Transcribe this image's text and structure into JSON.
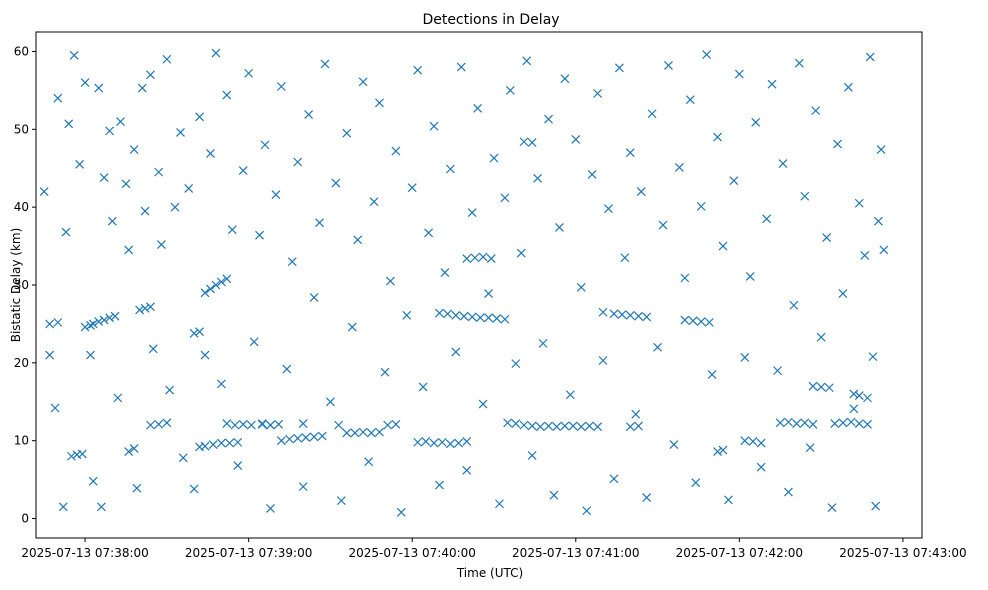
{
  "chart_data": {
    "type": "scatter",
    "title": "Detections in Delay",
    "xlabel": "Time (UTC)",
    "ylabel": "Bistatic Delay (km)",
    "x_ticks": [
      "2025-07-13 07:38:00",
      "2025-07-13 07:39:00",
      "2025-07-13 07:40:00",
      "2025-07-13 07:41:00",
      "2025-07-13 07:42:00",
      "2025-07-13 07:43:00"
    ],
    "y_ticks": [
      0,
      10,
      20,
      30,
      40,
      50,
      60
    ],
    "xlim": [
      "2025-07-13 07:37:42",
      "2025-07-13 07:43:07"
    ],
    "ylim": [
      -2.5,
      62.5
    ],
    "marker": "x",
    "grid": false,
    "color": "#1f77b4",
    "series": [
      {
        "points": [
          [
            "07:37:47",
            25.0
          ],
          [
            "07:37:50",
            25.2
          ],
          [
            "07:37:55",
            8.0
          ],
          [
            "07:37:57",
            8.2
          ],
          [
            "07:37:59",
            8.3
          ],
          [
            "07:38:00",
            24.6
          ],
          [
            "07:38:02",
            24.8
          ],
          [
            "07:38:03",
            25.0
          ],
          [
            "07:38:05",
            25.3
          ],
          [
            "07:38:07",
            25.5
          ],
          [
            "07:38:09",
            25.8
          ],
          [
            "07:38:11",
            26.0
          ],
          [
            "07:38:16",
            8.6
          ],
          [
            "07:38:18",
            9.0
          ],
          [
            "07:38:20",
            26.8
          ],
          [
            "07:38:22",
            27.0
          ],
          [
            "07:38:24",
            27.2
          ],
          [
            "07:38:24",
            12.0
          ],
          [
            "07:38:27",
            12.1
          ],
          [
            "07:38:30",
            12.3
          ],
          [
            "07:38:40",
            23.8
          ],
          [
            "07:38:42",
            24.0
          ],
          [
            "07:38:44",
            29.0
          ],
          [
            "07:38:46",
            29.5
          ],
          [
            "07:38:48",
            30.0
          ],
          [
            "07:38:50",
            30.4
          ],
          [
            "07:38:52",
            30.8
          ],
          [
            "07:38:42",
            9.2
          ],
          [
            "07:38:44",
            9.3
          ],
          [
            "07:38:47",
            9.5
          ],
          [
            "07:38:50",
            9.7
          ],
          [
            "07:38:53",
            9.7
          ],
          [
            "07:38:56",
            9.8
          ],
          [
            "07:38:52",
            12.2
          ],
          [
            "07:38:55",
            12.0
          ],
          [
            "07:38:58",
            12.1
          ],
          [
            "07:39:01",
            12.0
          ],
          [
            "07:39:05",
            12.1
          ],
          [
            "07:39:08",
            12.0
          ],
          [
            "07:39:12",
            10.0
          ],
          [
            "07:39:15",
            10.2
          ],
          [
            "07:39:18",
            10.3
          ],
          [
            "07:39:21",
            10.4
          ],
          [
            "07:39:24",
            10.5
          ],
          [
            "07:39:27",
            10.6
          ],
          [
            "07:39:05",
            12.2
          ],
          [
            "07:39:08",
            12.0
          ],
          [
            "07:39:11",
            12.1
          ],
          [
            "07:39:20",
            12.2
          ],
          [
            "07:39:33",
            12.0
          ],
          [
            "07:39:36",
            11.0
          ],
          [
            "07:39:39",
            11.0
          ],
          [
            "07:39:42",
            11.1
          ],
          [
            "07:39:45",
            11.0
          ],
          [
            "07:39:48",
            11.1
          ],
          [
            "07:39:51",
            12.0
          ],
          [
            "07:39:54",
            12.1
          ],
          [
            "07:40:02",
            9.8
          ],
          [
            "07:40:05",
            9.9
          ],
          [
            "07:40:08",
            9.7
          ],
          [
            "07:40:11",
            9.8
          ],
          [
            "07:40:14",
            9.6
          ],
          [
            "07:40:17",
            9.7
          ],
          [
            "07:40:20",
            9.9
          ],
          [
            "07:40:10",
            26.4
          ],
          [
            "07:40:13",
            26.3
          ],
          [
            "07:40:16",
            26.1
          ],
          [
            "07:40:19",
            26.0
          ],
          [
            "07:40:22",
            25.9
          ],
          [
            "07:40:25",
            25.8
          ],
          [
            "07:40:28",
            25.8
          ],
          [
            "07:40:31",
            25.7
          ],
          [
            "07:40:34",
            25.6
          ],
          [
            "07:40:20",
            33.4
          ],
          [
            "07:40:23",
            33.5
          ],
          [
            "07:40:26",
            33.6
          ],
          [
            "07:40:29",
            33.4
          ],
          [
            "07:40:35",
            12.3
          ],
          [
            "07:40:38",
            12.2
          ],
          [
            "07:40:41",
            12.0
          ],
          [
            "07:40:44",
            11.9
          ],
          [
            "07:40:47",
            11.8
          ],
          [
            "07:40:50",
            11.9
          ],
          [
            "07:40:53",
            11.8
          ],
          [
            "07:40:56",
            11.9
          ],
          [
            "07:40:59",
            11.9
          ],
          [
            "07:41:02",
            11.8
          ],
          [
            "07:41:05",
            11.9
          ],
          [
            "07:41:08",
            11.8
          ],
          [
            "07:40:41",
            48.4
          ],
          [
            "07:40:44",
            48.3
          ],
          [
            "07:41:10",
            26.5
          ],
          [
            "07:41:14",
            26.3
          ],
          [
            "07:41:17",
            26.2
          ],
          [
            "07:41:20",
            26.1
          ],
          [
            "07:41:23",
            26.0
          ],
          [
            "07:41:26",
            25.9
          ],
          [
            "07:41:20",
            11.8
          ],
          [
            "07:41:23",
            11.9
          ],
          [
            "07:41:40",
            25.5
          ],
          [
            "07:41:43",
            25.4
          ],
          [
            "07:41:46",
            25.3
          ],
          [
            "07:41:49",
            25.2
          ],
          [
            "07:41:52",
            8.6
          ],
          [
            "07:41:54",
            8.8
          ],
          [
            "07:42:02",
            10.0
          ],
          [
            "07:42:05",
            9.9
          ],
          [
            "07:42:08",
            9.7
          ],
          [
            "07:42:15",
            12.3
          ],
          [
            "07:42:18",
            12.4
          ],
          [
            "07:42:21",
            12.2
          ],
          [
            "07:42:24",
            12.3
          ],
          [
            "07:42:27",
            12.1
          ],
          [
            "07:42:35",
            12.2
          ],
          [
            "07:42:38",
            12.3
          ],
          [
            "07:42:41",
            12.4
          ],
          [
            "07:42:44",
            12.2
          ],
          [
            "07:42:47",
            12.1
          ],
          [
            "07:42:27",
            17.0
          ],
          [
            "07:42:30",
            16.9
          ],
          [
            "07:42:33",
            16.8
          ],
          [
            "07:42:42",
            16.0
          ],
          [
            "07:42:44",
            15.8
          ],
          [
            "07:42:47",
            15.5
          ],
          [
            "07:37:45",
            42.0
          ],
          [
            "07:37:47",
            21.0
          ],
          [
            "07:37:49",
            14.2
          ],
          [
            "07:37:50",
            54.0
          ],
          [
            "07:37:52",
            1.5
          ],
          [
            "07:37:53",
            36.8
          ],
          [
            "07:37:54",
            50.7
          ],
          [
            "07:37:56",
            59.5
          ],
          [
            "07:37:58",
            45.5
          ],
          [
            "07:38:00",
            56.0
          ],
          [
            "07:38:02",
            21.0
          ],
          [
            "07:38:03",
            4.8
          ],
          [
            "07:38:05",
            55.3
          ],
          [
            "07:38:06",
            1.5
          ],
          [
            "07:38:07",
            43.8
          ],
          [
            "07:38:09",
            49.8
          ],
          [
            "07:38:10",
            38.2
          ],
          [
            "07:38:12",
            15.5
          ],
          [
            "07:38:13",
            51.0
          ],
          [
            "07:38:15",
            43.0
          ],
          [
            "07:38:16",
            34.5
          ],
          [
            "07:38:18",
            47.4
          ],
          [
            "07:38:19",
            3.9
          ],
          [
            "07:38:21",
            55.3
          ],
          [
            "07:38:22",
            39.5
          ],
          [
            "07:38:24",
            57.0
          ],
          [
            "07:38:25",
            21.8
          ],
          [
            "07:38:27",
            44.5
          ],
          [
            "07:38:28",
            35.2
          ],
          [
            "07:38:30",
            59.0
          ],
          [
            "07:38:31",
            16.5
          ],
          [
            "07:38:33",
            40.0
          ],
          [
            "07:38:35",
            49.6
          ],
          [
            "07:38:36",
            7.8
          ],
          [
            "07:38:38",
            42.4
          ],
          [
            "07:38:40",
            3.8
          ],
          [
            "07:38:42",
            51.6
          ],
          [
            "07:38:44",
            21.0
          ],
          [
            "07:38:46",
            46.9
          ],
          [
            "07:38:48",
            59.8
          ],
          [
            "07:38:50",
            17.3
          ],
          [
            "07:38:52",
            54.4
          ],
          [
            "07:38:54",
            37.1
          ],
          [
            "07:38:56",
            6.8
          ],
          [
            "07:38:58",
            44.7
          ],
          [
            "07:39:00",
            57.2
          ],
          [
            "07:39:02",
            22.7
          ],
          [
            "07:39:04",
            36.4
          ],
          [
            "07:39:06",
            48.0
          ],
          [
            "07:39:08",
            1.3
          ],
          [
            "07:39:10",
            41.6
          ],
          [
            "07:39:12",
            55.5
          ],
          [
            "07:39:14",
            19.2
          ],
          [
            "07:39:16",
            33.0
          ],
          [
            "07:39:18",
            45.8
          ],
          [
            "07:39:20",
            4.1
          ],
          [
            "07:39:22",
            51.9
          ],
          [
            "07:39:24",
            28.4
          ],
          [
            "07:39:26",
            38.0
          ],
          [
            "07:39:28",
            58.4
          ],
          [
            "07:39:30",
            15.0
          ],
          [
            "07:39:32",
            43.1
          ],
          [
            "07:39:34",
            2.3
          ],
          [
            "07:39:36",
            49.5
          ],
          [
            "07:39:38",
            24.6
          ],
          [
            "07:39:40",
            35.8
          ],
          [
            "07:39:42",
            56.1
          ],
          [
            "07:39:44",
            7.3
          ],
          [
            "07:39:46",
            40.7
          ],
          [
            "07:39:48",
            53.4
          ],
          [
            "07:39:50",
            18.8
          ],
          [
            "07:39:52",
            30.5
          ],
          [
            "07:39:54",
            47.2
          ],
          [
            "07:39:56",
            0.8
          ],
          [
            "07:39:58",
            26.1
          ],
          [
            "07:40:00",
            42.5
          ],
          [
            "07:40:02",
            57.6
          ],
          [
            "07:40:04",
            16.9
          ],
          [
            "07:40:06",
            36.7
          ],
          [
            "07:40:08",
            50.4
          ],
          [
            "07:40:10",
            4.3
          ],
          [
            "07:40:12",
            31.6
          ],
          [
            "07:40:14",
            44.9
          ],
          [
            "07:40:16",
            21.4
          ],
          [
            "07:40:18",
            58.0
          ],
          [
            "07:40:20",
            6.2
          ],
          [
            "07:40:22",
            39.3
          ],
          [
            "07:40:24",
            52.7
          ],
          [
            "07:40:26",
            14.7
          ],
          [
            "07:40:28",
            28.9
          ],
          [
            "07:40:30",
            46.3
          ],
          [
            "07:40:32",
            1.9
          ],
          [
            "07:40:34",
            41.2
          ],
          [
            "07:40:36",
            55.0
          ],
          [
            "07:40:38",
            19.9
          ],
          [
            "07:40:40",
            34.1
          ],
          [
            "07:40:42",
            58.8
          ],
          [
            "07:40:44",
            8.1
          ],
          [
            "07:40:46",
            43.7
          ],
          [
            "07:40:48",
            22.5
          ],
          [
            "07:40:50",
            51.3
          ],
          [
            "07:40:52",
            3.0
          ],
          [
            "07:40:54",
            37.4
          ],
          [
            "07:40:56",
            56.5
          ],
          [
            "07:40:58",
            15.9
          ],
          [
            "07:41:00",
            48.7
          ],
          [
            "07:41:02",
            29.7
          ],
          [
            "07:41:04",
            1.0
          ],
          [
            "07:41:06",
            44.2
          ],
          [
            "07:41:08",
            54.6
          ],
          [
            "07:41:10",
            20.3
          ],
          [
            "07:41:12",
            39.8
          ],
          [
            "07:41:14",
            5.1
          ],
          [
            "07:41:16",
            57.9
          ],
          [
            "07:41:18",
            33.5
          ],
          [
            "07:41:20",
            47.0
          ],
          [
            "07:41:22",
            13.4
          ],
          [
            "07:41:24",
            42.0
          ],
          [
            "07:41:26",
            2.7
          ],
          [
            "07:41:28",
            52.0
          ],
          [
            "07:41:30",
            22.0
          ],
          [
            "07:41:32",
            37.7
          ],
          [
            "07:41:34",
            58.2
          ],
          [
            "07:41:36",
            9.5
          ],
          [
            "07:41:38",
            45.1
          ],
          [
            "07:41:40",
            30.9
          ],
          [
            "07:41:42",
            53.8
          ],
          [
            "07:41:44",
            4.6
          ],
          [
            "07:41:46",
            40.1
          ],
          [
            "07:41:48",
            59.6
          ],
          [
            "07:41:50",
            18.5
          ],
          [
            "07:41:52",
            49.0
          ],
          [
            "07:41:54",
            35.0
          ],
          [
            "07:41:56",
            2.4
          ],
          [
            "07:41:58",
            43.4
          ],
          [
            "07:42:00",
            57.1
          ],
          [
            "07:42:02",
            20.7
          ],
          [
            "07:42:04",
            31.1
          ],
          [
            "07:42:06",
            50.9
          ],
          [
            "07:42:08",
            6.6
          ],
          [
            "07:42:10",
            38.5
          ],
          [
            "07:42:12",
            55.8
          ],
          [
            "07:42:14",
            19.0
          ],
          [
            "07:42:16",
            45.6
          ],
          [
            "07:42:18",
            3.4
          ],
          [
            "07:42:20",
            27.4
          ],
          [
            "07:42:22",
            58.5
          ],
          [
            "07:42:24",
            41.4
          ],
          [
            "07:42:26",
            9.1
          ],
          [
            "07:42:28",
            52.4
          ],
          [
            "07:42:30",
            23.3
          ],
          [
            "07:42:32",
            36.1
          ],
          [
            "07:42:34",
            1.4
          ],
          [
            "07:42:36",
            48.1
          ],
          [
            "07:42:38",
            28.9
          ],
          [
            "07:42:40",
            55.4
          ],
          [
            "07:42:42",
            14.1
          ],
          [
            "07:42:44",
            40.5
          ],
          [
            "07:42:46",
            33.8
          ],
          [
            "07:42:48",
            59.3
          ],
          [
            "07:42:49",
            20.8
          ],
          [
            "07:42:50",
            1.6
          ],
          [
            "07:42:51",
            38.2
          ],
          [
            "07:42:52",
            47.4
          ],
          [
            "07:42:53",
            34.5
          ]
        ]
      }
    ]
  }
}
